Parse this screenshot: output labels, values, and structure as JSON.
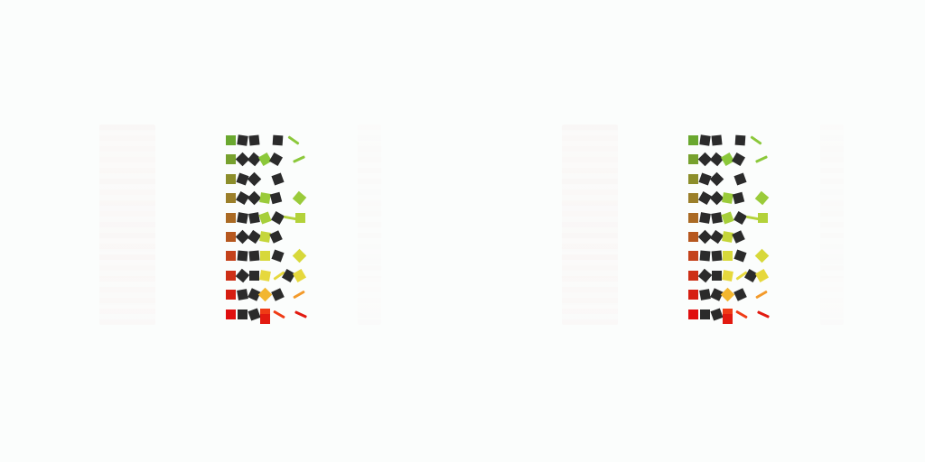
{
  "scene": {
    "description_hidden": "",
    "rows": 10
  },
  "colors": {
    "background": "#fbfdfc",
    "dark_tile": "#2b2b2b",
    "row_markers": [
      "#6aa82f",
      "#77a12e",
      "#8c8e2b",
      "#9b7f2a",
      "#aa6a24",
      "#b6581f",
      "#c4421b",
      "#cd2f16",
      "#d61e12",
      "#e00f0f"
    ],
    "accent_tiles": [
      "#8bc83a",
      "#9acb3a",
      "#a6cf3a",
      "#b3d23a",
      "#c5d63a",
      "#d7d83a",
      "#e6d83c",
      "#f2b62f",
      "#f39a2a",
      "#f36a1e",
      "#ef3b15",
      "#e21a10"
    ]
  },
  "icons": {
    "tile": "square-tile-icon",
    "rotated_tile": "diamond-tile-icon",
    "sliver": "sliver-icon"
  }
}
